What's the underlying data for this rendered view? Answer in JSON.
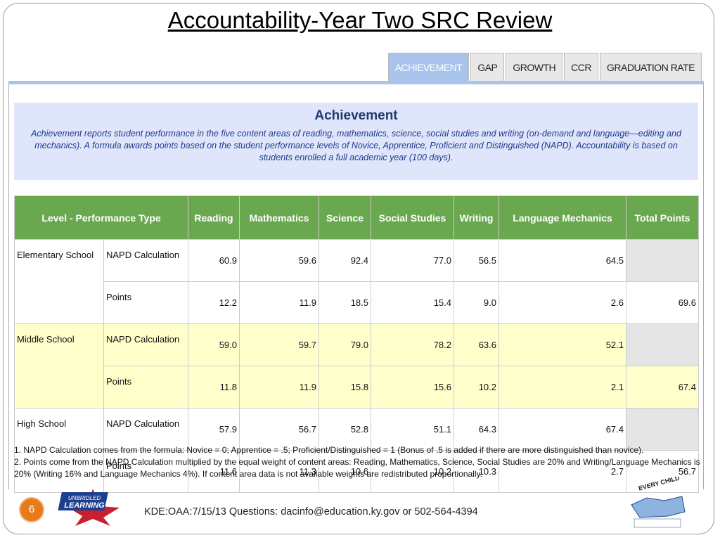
{
  "title": "Accountability-Year Two SRC Review",
  "tabs": [
    "ACHIEVEMENT",
    "GAP",
    "GROWTH",
    "CCR",
    "GRADUATION RATE"
  ],
  "achievement": {
    "heading": "Achievement",
    "description": "Achievement reports student performance in the five content areas of reading, mathematics, science, social studies and writing (on-demand and language—editing and mechanics). A formula awards points based on the student performance levels of Novice, Apprentice, Proficient and Distinguished (NAPD). Accountability is based on students enrolled a full academic year (100 days)."
  },
  "table": {
    "columns": [
      "Level - Performance Type",
      "Reading",
      "Mathematics",
      "Science",
      "Social Studies",
      "Writing",
      "Language Mechanics",
      "Total Points"
    ],
    "schools": [
      {
        "name": "Elementary School",
        "rows": [
          {
            "type": "NAPD Calculation",
            "values": [
              "60.9",
              "59.6",
              "92.4",
              "77.0",
              "56.5",
              "64.5"
            ]
          },
          {
            "type": "Points",
            "values": [
              "12.2",
              "11.9",
              "18.5",
              "15.4",
              "9.0",
              "2.6"
            ],
            "total": "69.6"
          }
        ]
      },
      {
        "name": "Middle School",
        "rows": [
          {
            "type": "NAPD Calculation",
            "values": [
              "59.0",
              "59.7",
              "79.0",
              "78.2",
              "63.6",
              "52.1"
            ]
          },
          {
            "type": "Points",
            "values": [
              "11.8",
              "11.9",
              "15.8",
              "15.6",
              "10.2",
              "2.1"
            ],
            "total": "67.4"
          }
        ]
      },
      {
        "name": "High School",
        "rows": [
          {
            "type": "NAPD Calculation",
            "values": [
              "57.9",
              "56.7",
              "52.8",
              "51.1",
              "64.3",
              "67.4"
            ]
          },
          {
            "type": "Points",
            "values": [
              "11.6",
              "11.3",
              "10.6",
              "10.2",
              "10.3",
              "2.7"
            ],
            "total": "56.7"
          }
        ]
      }
    ]
  },
  "notes": [
    "1. NAPD Calculation comes from the formula: Novice = 0; Apprentice = .5; Proficient/Distinguished = 1 (Bonus of .5 is added if there are more distinguished than novice).",
    "2. Points come from the NAPD Calculation multiplied by the equal weight of content areas: Reading, Mathematics, Science, Social Studies are 20% and Writing/Language Mechanics is 20% (Writing 16% and Language Mechanics 4%). If content area data is not available weights are redistributed proportionally."
  ],
  "footer": {
    "slide_number": "6",
    "logo_left": [
      "UNBRIDLED",
      "LEARNING"
    ],
    "text": "KDE:OAA:7/15/13  Questions: dacinfo@education.ky.gov or 502-564-4394",
    "logo_right": "EVERY CHILD"
  }
}
